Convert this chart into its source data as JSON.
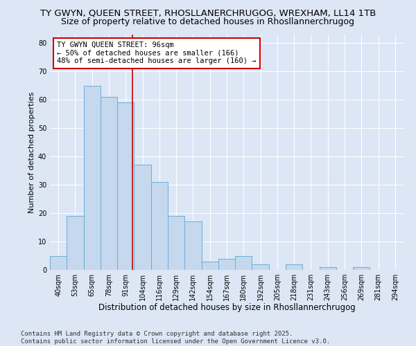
{
  "title": "TY GWYN, QUEEN STREET, RHOSLLANERCHRUGOG, WREXHAM, LL14 1TB",
  "subtitle": "Size of property relative to detached houses in Rhosllannerchrugog",
  "xlabel": "Distribution of detached houses by size in Rhosllannerchrugog",
  "ylabel": "Number of detached properties",
  "categories": [
    "40sqm",
    "53sqm",
    "65sqm",
    "78sqm",
    "91sqm",
    "104sqm",
    "116sqm",
    "129sqm",
    "142sqm",
    "154sqm",
    "167sqm",
    "180sqm",
    "192sqm",
    "205sqm",
    "218sqm",
    "231sqm",
    "243sqm",
    "256sqm",
    "269sqm",
    "281sqm",
    "294sqm"
  ],
  "bar_heights": [
    5,
    19,
    65,
    61,
    59,
    37,
    31,
    19,
    17,
    3,
    4,
    5,
    2,
    0,
    2,
    0,
    1,
    0,
    1,
    0,
    0
  ],
  "ylim": [
    0,
    83
  ],
  "yticks": [
    0,
    10,
    20,
    30,
    40,
    50,
    60,
    70,
    80
  ],
  "bar_color": "#c5d8ed",
  "bar_edge_color": "#6aaed6",
  "background_color": "#dce6f5",
  "grid_color": "#ffffff",
  "vline_color": "#cc0000",
  "annotation_title": "TY GWYN QUEEN STREET: 96sqm",
  "annotation_line1": "← 50% of detached houses are smaller (166)",
  "annotation_line2": "48% of semi-detached houses are larger (160) →",
  "annotation_box_color": "#cc0000",
  "footer": "Contains HM Land Registry data © Crown copyright and database right 2025.\nContains public sector information licensed under the Open Government Licence v3.0.",
  "title_fontsize": 9.5,
  "subtitle_fontsize": 9,
  "xlabel_fontsize": 8.5,
  "ylabel_fontsize": 8,
  "annot_fontsize": 7.5,
  "footer_fontsize": 6.5,
  "tick_fontsize": 7
}
